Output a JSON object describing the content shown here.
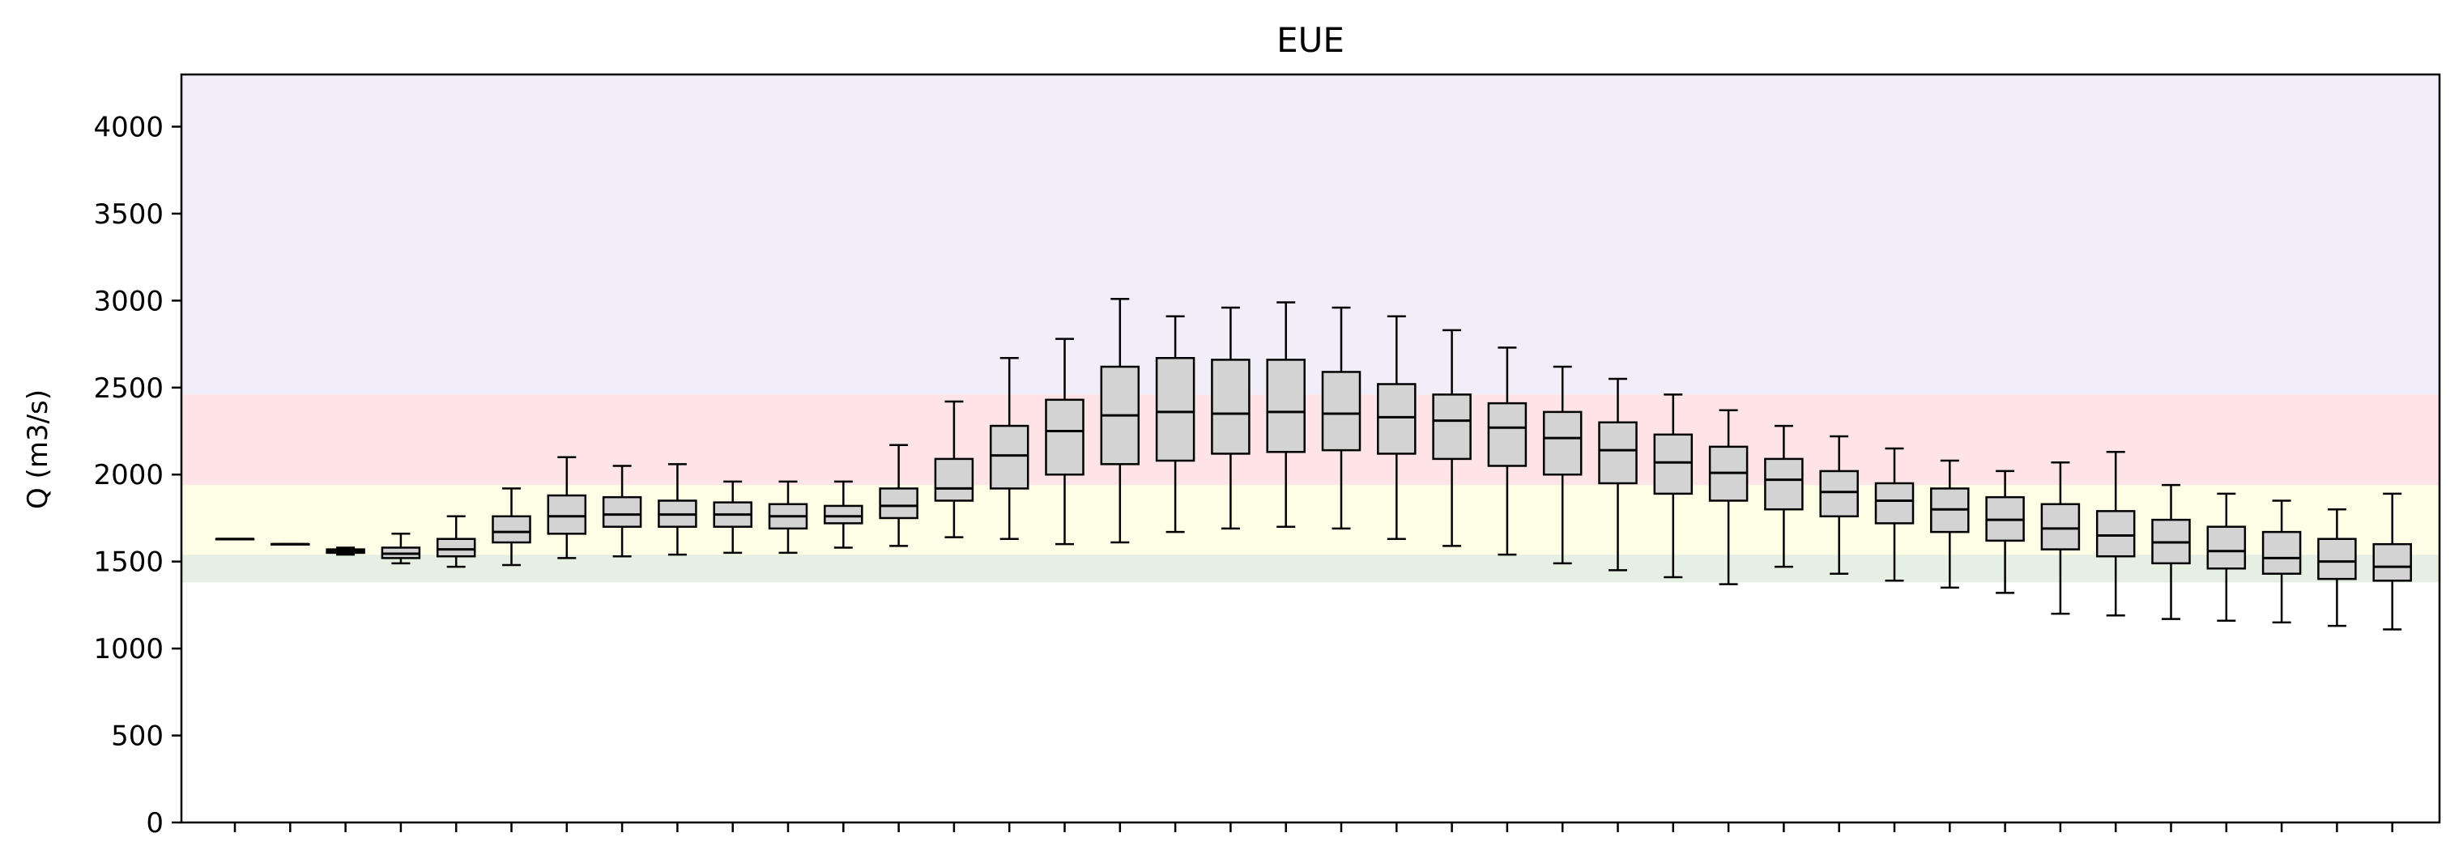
{
  "chart_data": {
    "type": "box",
    "title": "EUE",
    "ylabel": "Q (m3/s)",
    "xlabel": "",
    "ylim": [
      0,
      4300
    ],
    "yticks": [
      0,
      500,
      1000,
      1500,
      2000,
      2500,
      3000,
      3500,
      4000
    ],
    "x_tick_labels_shown": false,
    "bands": [
      {
        "from": 1380,
        "to": 1540,
        "color": "#e6f0e2"
      },
      {
        "from": 1540,
        "to": 1940,
        "color": "#fefee6"
      },
      {
        "from": 1940,
        "to": 2460,
        "color": "#fee4e6"
      },
      {
        "from": 2460,
        "to": 4300,
        "color": "#f2eef9"
      }
    ],
    "box_fill": "#d3d3d3",
    "boxes": [
      {
        "whislo": 1630,
        "q1": 1630,
        "med": 1630,
        "q3": 1630,
        "whishi": 1630
      },
      {
        "whislo": 1600,
        "q1": 1600,
        "med": 1600,
        "q3": 1600,
        "whishi": 1600
      },
      {
        "whislo": 1540,
        "q1": 1550,
        "med": 1560,
        "q3": 1570,
        "whishi": 1580
      },
      {
        "whislo": 1490,
        "q1": 1520,
        "med": 1545,
        "q3": 1580,
        "whishi": 1660
      },
      {
        "whislo": 1470,
        "q1": 1530,
        "med": 1570,
        "q3": 1630,
        "whishi": 1760
      },
      {
        "whislo": 1480,
        "q1": 1610,
        "med": 1670,
        "q3": 1760,
        "whishi": 1920
      },
      {
        "whislo": 1520,
        "q1": 1660,
        "med": 1760,
        "q3": 1880,
        "whishi": 2100
      },
      {
        "whislo": 1530,
        "q1": 1700,
        "med": 1770,
        "q3": 1870,
        "whishi": 2050
      },
      {
        "whislo": 1540,
        "q1": 1700,
        "med": 1770,
        "q3": 1850,
        "whishi": 2060
      },
      {
        "whislo": 1550,
        "q1": 1700,
        "med": 1770,
        "q3": 1840,
        "whishi": 1960
      },
      {
        "whislo": 1550,
        "q1": 1690,
        "med": 1760,
        "q3": 1830,
        "whishi": 1960
      },
      {
        "whislo": 1580,
        "q1": 1720,
        "med": 1760,
        "q3": 1820,
        "whishi": 1960
      },
      {
        "whislo": 1590,
        "q1": 1750,
        "med": 1820,
        "q3": 1920,
        "whishi": 2170
      },
      {
        "whislo": 1640,
        "q1": 1850,
        "med": 1920,
        "q3": 2090,
        "whishi": 2420
      },
      {
        "whislo": 1630,
        "q1": 1920,
        "med": 2110,
        "q3": 2280,
        "whishi": 2670
      },
      {
        "whislo": 1600,
        "q1": 2000,
        "med": 2250,
        "q3": 2430,
        "whishi": 2780
      },
      {
        "whislo": 1610,
        "q1": 2060,
        "med": 2340,
        "q3": 2620,
        "whishi": 3010
      },
      {
        "whislo": 1670,
        "q1": 2080,
        "med": 2360,
        "q3": 2670,
        "whishi": 2910
      },
      {
        "whislo": 1690,
        "q1": 2120,
        "med": 2350,
        "q3": 2660,
        "whishi": 2960
      },
      {
        "whislo": 1700,
        "q1": 2130,
        "med": 2360,
        "q3": 2660,
        "whishi": 2990
      },
      {
        "whislo": 1690,
        "q1": 2140,
        "med": 2350,
        "q3": 2590,
        "whishi": 2960
      },
      {
        "whislo": 1630,
        "q1": 2120,
        "med": 2330,
        "q3": 2520,
        "whishi": 2910
      },
      {
        "whislo": 1590,
        "q1": 2090,
        "med": 2310,
        "q3": 2460,
        "whishi": 2830
      },
      {
        "whislo": 1540,
        "q1": 2050,
        "med": 2270,
        "q3": 2410,
        "whishi": 2730
      },
      {
        "whislo": 1490,
        "q1": 2000,
        "med": 2210,
        "q3": 2360,
        "whishi": 2620
      },
      {
        "whislo": 1450,
        "q1": 1950,
        "med": 2140,
        "q3": 2300,
        "whishi": 2550
      },
      {
        "whislo": 1410,
        "q1": 1890,
        "med": 2070,
        "q3": 2230,
        "whishi": 2460
      },
      {
        "whislo": 1370,
        "q1": 1850,
        "med": 2010,
        "q3": 2160,
        "whishi": 2370
      },
      {
        "whislo": 1470,
        "q1": 1800,
        "med": 1970,
        "q3": 2090,
        "whishi": 2280
      },
      {
        "whislo": 1430,
        "q1": 1760,
        "med": 1900,
        "q3": 2020,
        "whishi": 2220
      },
      {
        "whislo": 1390,
        "q1": 1720,
        "med": 1850,
        "q3": 1950,
        "whishi": 2150
      },
      {
        "whislo": 1350,
        "q1": 1670,
        "med": 1800,
        "q3": 1920,
        "whishi": 2080
      },
      {
        "whislo": 1320,
        "q1": 1620,
        "med": 1740,
        "q3": 1870,
        "whishi": 2020
      },
      {
        "whislo": 1200,
        "q1": 1570,
        "med": 1690,
        "q3": 1830,
        "whishi": 2070
      },
      {
        "whislo": 1190,
        "q1": 1530,
        "med": 1650,
        "q3": 1790,
        "whishi": 2130
      },
      {
        "whislo": 1170,
        "q1": 1490,
        "med": 1610,
        "q3": 1740,
        "whishi": 1940
      },
      {
        "whislo": 1160,
        "q1": 1460,
        "med": 1560,
        "q3": 1700,
        "whishi": 1890
      },
      {
        "whislo": 1150,
        "q1": 1430,
        "med": 1520,
        "q3": 1670,
        "whishi": 1850
      },
      {
        "whislo": 1130,
        "q1": 1400,
        "med": 1500,
        "q3": 1630,
        "whishi": 1800
      },
      {
        "whislo": 1110,
        "q1": 1390,
        "med": 1470,
        "q3": 1600,
        "whishi": 1890
      }
    ]
  }
}
